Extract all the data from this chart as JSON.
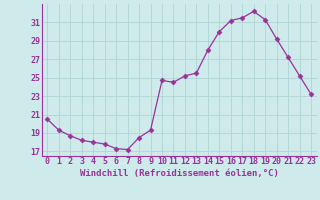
{
  "x": [
    0,
    1,
    2,
    3,
    4,
    5,
    6,
    7,
    8,
    9,
    10,
    11,
    12,
    13,
    14,
    15,
    16,
    17,
    18,
    19,
    20,
    21,
    22,
    23
  ],
  "y": [
    20.5,
    19.3,
    18.7,
    18.2,
    18.0,
    17.8,
    17.3,
    17.2,
    18.5,
    19.3,
    24.7,
    24.5,
    25.2,
    25.5,
    28.0,
    30.0,
    31.2,
    31.5,
    32.2,
    31.3,
    29.2,
    27.2,
    25.2,
    23.2
  ],
  "line_color": "#993399",
  "marker": "D",
  "marker_size": 2.5,
  "bg_color": "#ceeaea",
  "grid_color": "#b0d4d4",
  "xlabel": "Windchill (Refroidissement éolien,°C)",
  "xlabel_fontsize": 6.5,
  "tick_fontsize": 6.0,
  "ylim": [
    16.5,
    33.0
  ],
  "yticks": [
    17,
    19,
    21,
    23,
    25,
    27,
    29,
    31
  ],
  "xticks": [
    0,
    1,
    2,
    3,
    4,
    5,
    6,
    7,
    8,
    9,
    10,
    11,
    12,
    13,
    14,
    15,
    16,
    17,
    18,
    19,
    20,
    21,
    22,
    23
  ]
}
